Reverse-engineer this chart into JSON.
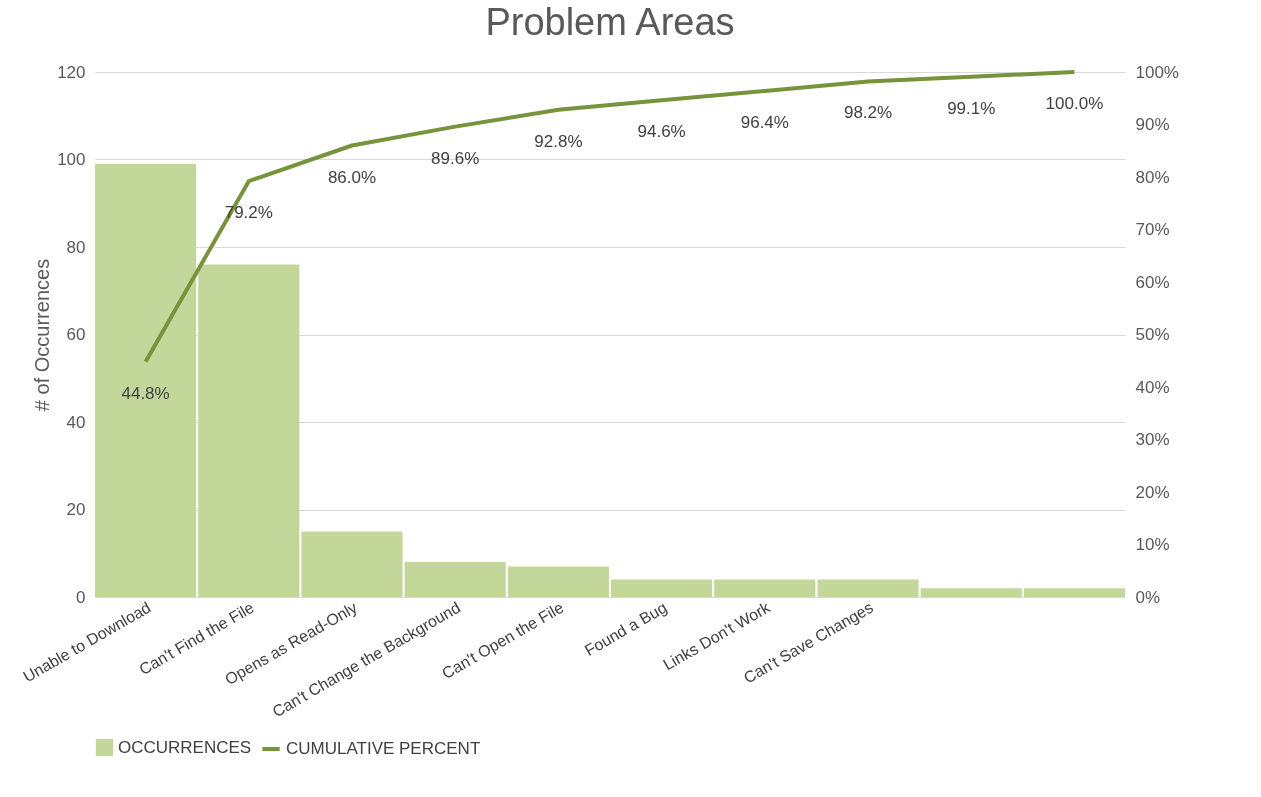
{
  "chart_data": {
    "type": "bar",
    "title": "Problem Areas",
    "ylabel": "# of Occurrences",
    "categories": [
      "Unable to Download",
      "Can't Find the File",
      "Opens as Read-Only",
      "Can't Change the Background",
      "Can't Open the File",
      "Found a Bug",
      "Links Don't Work",
      "Can't Save Changes",
      null,
      null
    ],
    "series": [
      {
        "name": "OCCURRENCES",
        "color": "#c4d79b",
        "values": [
          99,
          76,
          15,
          8,
          7,
          4,
          4,
          4,
          2,
          2
        ]
      },
      {
        "name": "CUMULATIVE PERCENT",
        "type": "line",
        "axis": "y2",
        "color": "#77933c",
        "values": [
          44.8,
          79.2,
          86.0,
          89.6,
          92.8,
          94.6,
          96.4,
          98.2,
          99.1,
          100.0
        ],
        "value_labels": [
          "44.8%",
          "79.2%",
          "86.0%",
          "89.6%",
          "92.8%",
          "94.6%",
          "96.4%",
          "98.2%",
          "99.1%",
          "100.0%"
        ]
      }
    ],
    "ylim": [
      0,
      120
    ],
    "yticks": [
      0,
      20,
      40,
      60,
      80,
      100,
      120
    ],
    "y2lim": [
      0,
      100
    ],
    "y2ticks": [
      {
        "value": 0,
        "label": "0%"
      },
      {
        "value": 10,
        "label": "10%"
      },
      {
        "value": 20,
        "label": "20%"
      },
      {
        "value": 30,
        "label": "30%"
      },
      {
        "value": 40,
        "label": "40%"
      },
      {
        "value": 50,
        "label": "50%"
      },
      {
        "value": 60,
        "label": "60%"
      },
      {
        "value": 70,
        "label": "70%"
      },
      {
        "value": 80,
        "label": "80%"
      },
      {
        "value": 90,
        "label": "90%"
      },
      {
        "value": 100,
        "label": "100%"
      }
    ],
    "grid": "y",
    "legend": "bottom"
  }
}
